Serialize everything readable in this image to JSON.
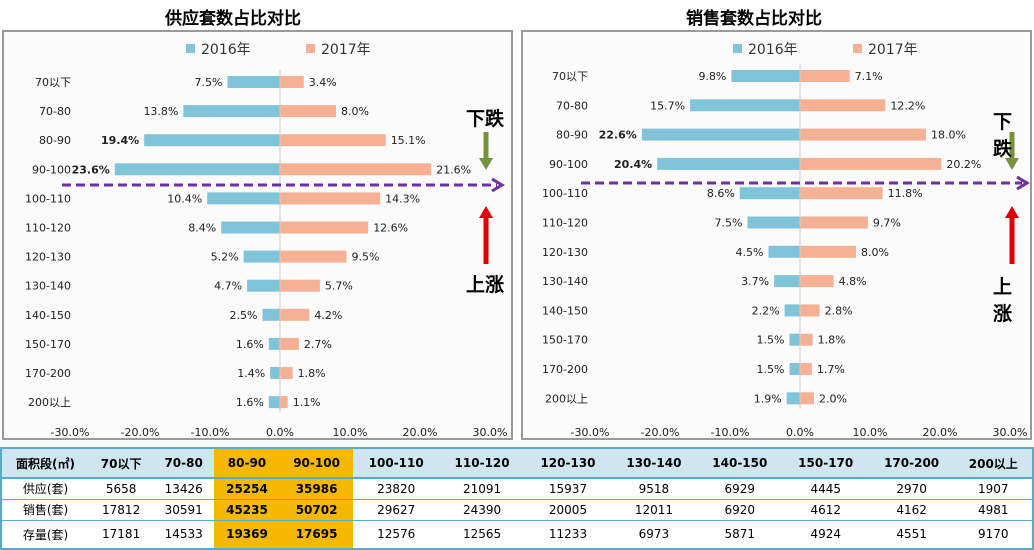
{
  "chart_data": [
    {
      "type": "bar",
      "title": "供应套数占比对比",
      "categories": [
        "70以下",
        "70-80",
        "80-90",
        "90-100",
        "100-110",
        "110-120",
        "120-130",
        "130-140",
        "140-150",
        "150-170",
        "170-200",
        "200以上"
      ],
      "series": [
        {
          "name": "2016年",
          "color": "#7fc4d8",
          "values": [
            7.5,
            13.8,
            19.4,
            23.6,
            10.4,
            8.4,
            5.2,
            4.7,
            2.5,
            1.6,
            1.4,
            1.6
          ]
        },
        {
          "name": "2017年",
          "color": "#f6b093",
          "values": [
            3.4,
            8.0,
            15.1,
            21.6,
            14.3,
            12.6,
            9.5,
            5.7,
            4.2,
            2.7,
            1.8,
            1.1
          ]
        }
      ],
      "bold_labels_2016": [
        "80-90",
        "90-100"
      ],
      "xlim": [
        -30,
        30
      ],
      "xticks": [
        "-30.0%",
        "-20.0%",
        "-10.0%",
        "0.0%",
        "10.0%",
        "20.0%",
        "30.0%"
      ],
      "legend": "top"
    },
    {
      "type": "bar",
      "title": "销售套数占比对比",
      "categories": [
        "70以下",
        "70-80",
        "80-90",
        "90-100",
        "100-110",
        "110-120",
        "120-130",
        "130-140",
        "140-150",
        "150-170",
        "170-200",
        "200以上"
      ],
      "series": [
        {
          "name": "2016年",
          "color": "#7fc4d8",
          "values": [
            9.8,
            15.7,
            22.6,
            20.4,
            8.6,
            7.5,
            4.5,
            3.7,
            2.2,
            1.5,
            1.5,
            1.9
          ]
        },
        {
          "name": "2017年",
          "color": "#f6b093",
          "values": [
            7.1,
            12.2,
            18.0,
            20.2,
            11.8,
            9.7,
            8.0,
            4.8,
            2.8,
            1.8,
            1.7,
            2.0
          ]
        }
      ],
      "bold_labels_2016": [
        "80-90",
        "90-100"
      ],
      "xlim": [
        -30,
        30
      ],
      "xticks": [
        "-30.0%",
        "-20.0%",
        "-10.0%",
        "0.0%",
        "10.0%",
        "20.0%",
        "30.0%"
      ],
      "legend": "top"
    }
  ],
  "annotations": {
    "down": "下跌",
    "up": "上涨",
    "down_color": "#77923c",
    "up_color": "#e00000",
    "divider_color": "#7030a0"
  },
  "table": {
    "headers": [
      "面积段(㎡)",
      "70以下",
      "70-80",
      "80-90",
      "90-100",
      "100-110",
      "110-120",
      "120-130",
      "130-140",
      "140-150",
      "150-170",
      "170-200",
      "200以上"
    ],
    "rows": [
      [
        "供应(套)",
        "5658",
        "13426",
        "25254",
        "35986",
        "23820",
        "21091",
        "15937",
        "9518",
        "6929",
        "4445",
        "2970",
        "1907"
      ],
      [
        "销售(套)",
        "17812",
        "30591",
        "45235",
        "50702",
        "29627",
        "24390",
        "20005",
        "12011",
        "6920",
        "4612",
        "4162",
        "4981"
      ],
      [
        "存量(套)",
        "17181",
        "14533",
        "19369",
        "17695",
        "12576",
        "12565",
        "11233",
        "6973",
        "5871",
        "4924",
        "4551",
        "9170"
      ]
    ],
    "highlight_color": "#f5b800"
  }
}
